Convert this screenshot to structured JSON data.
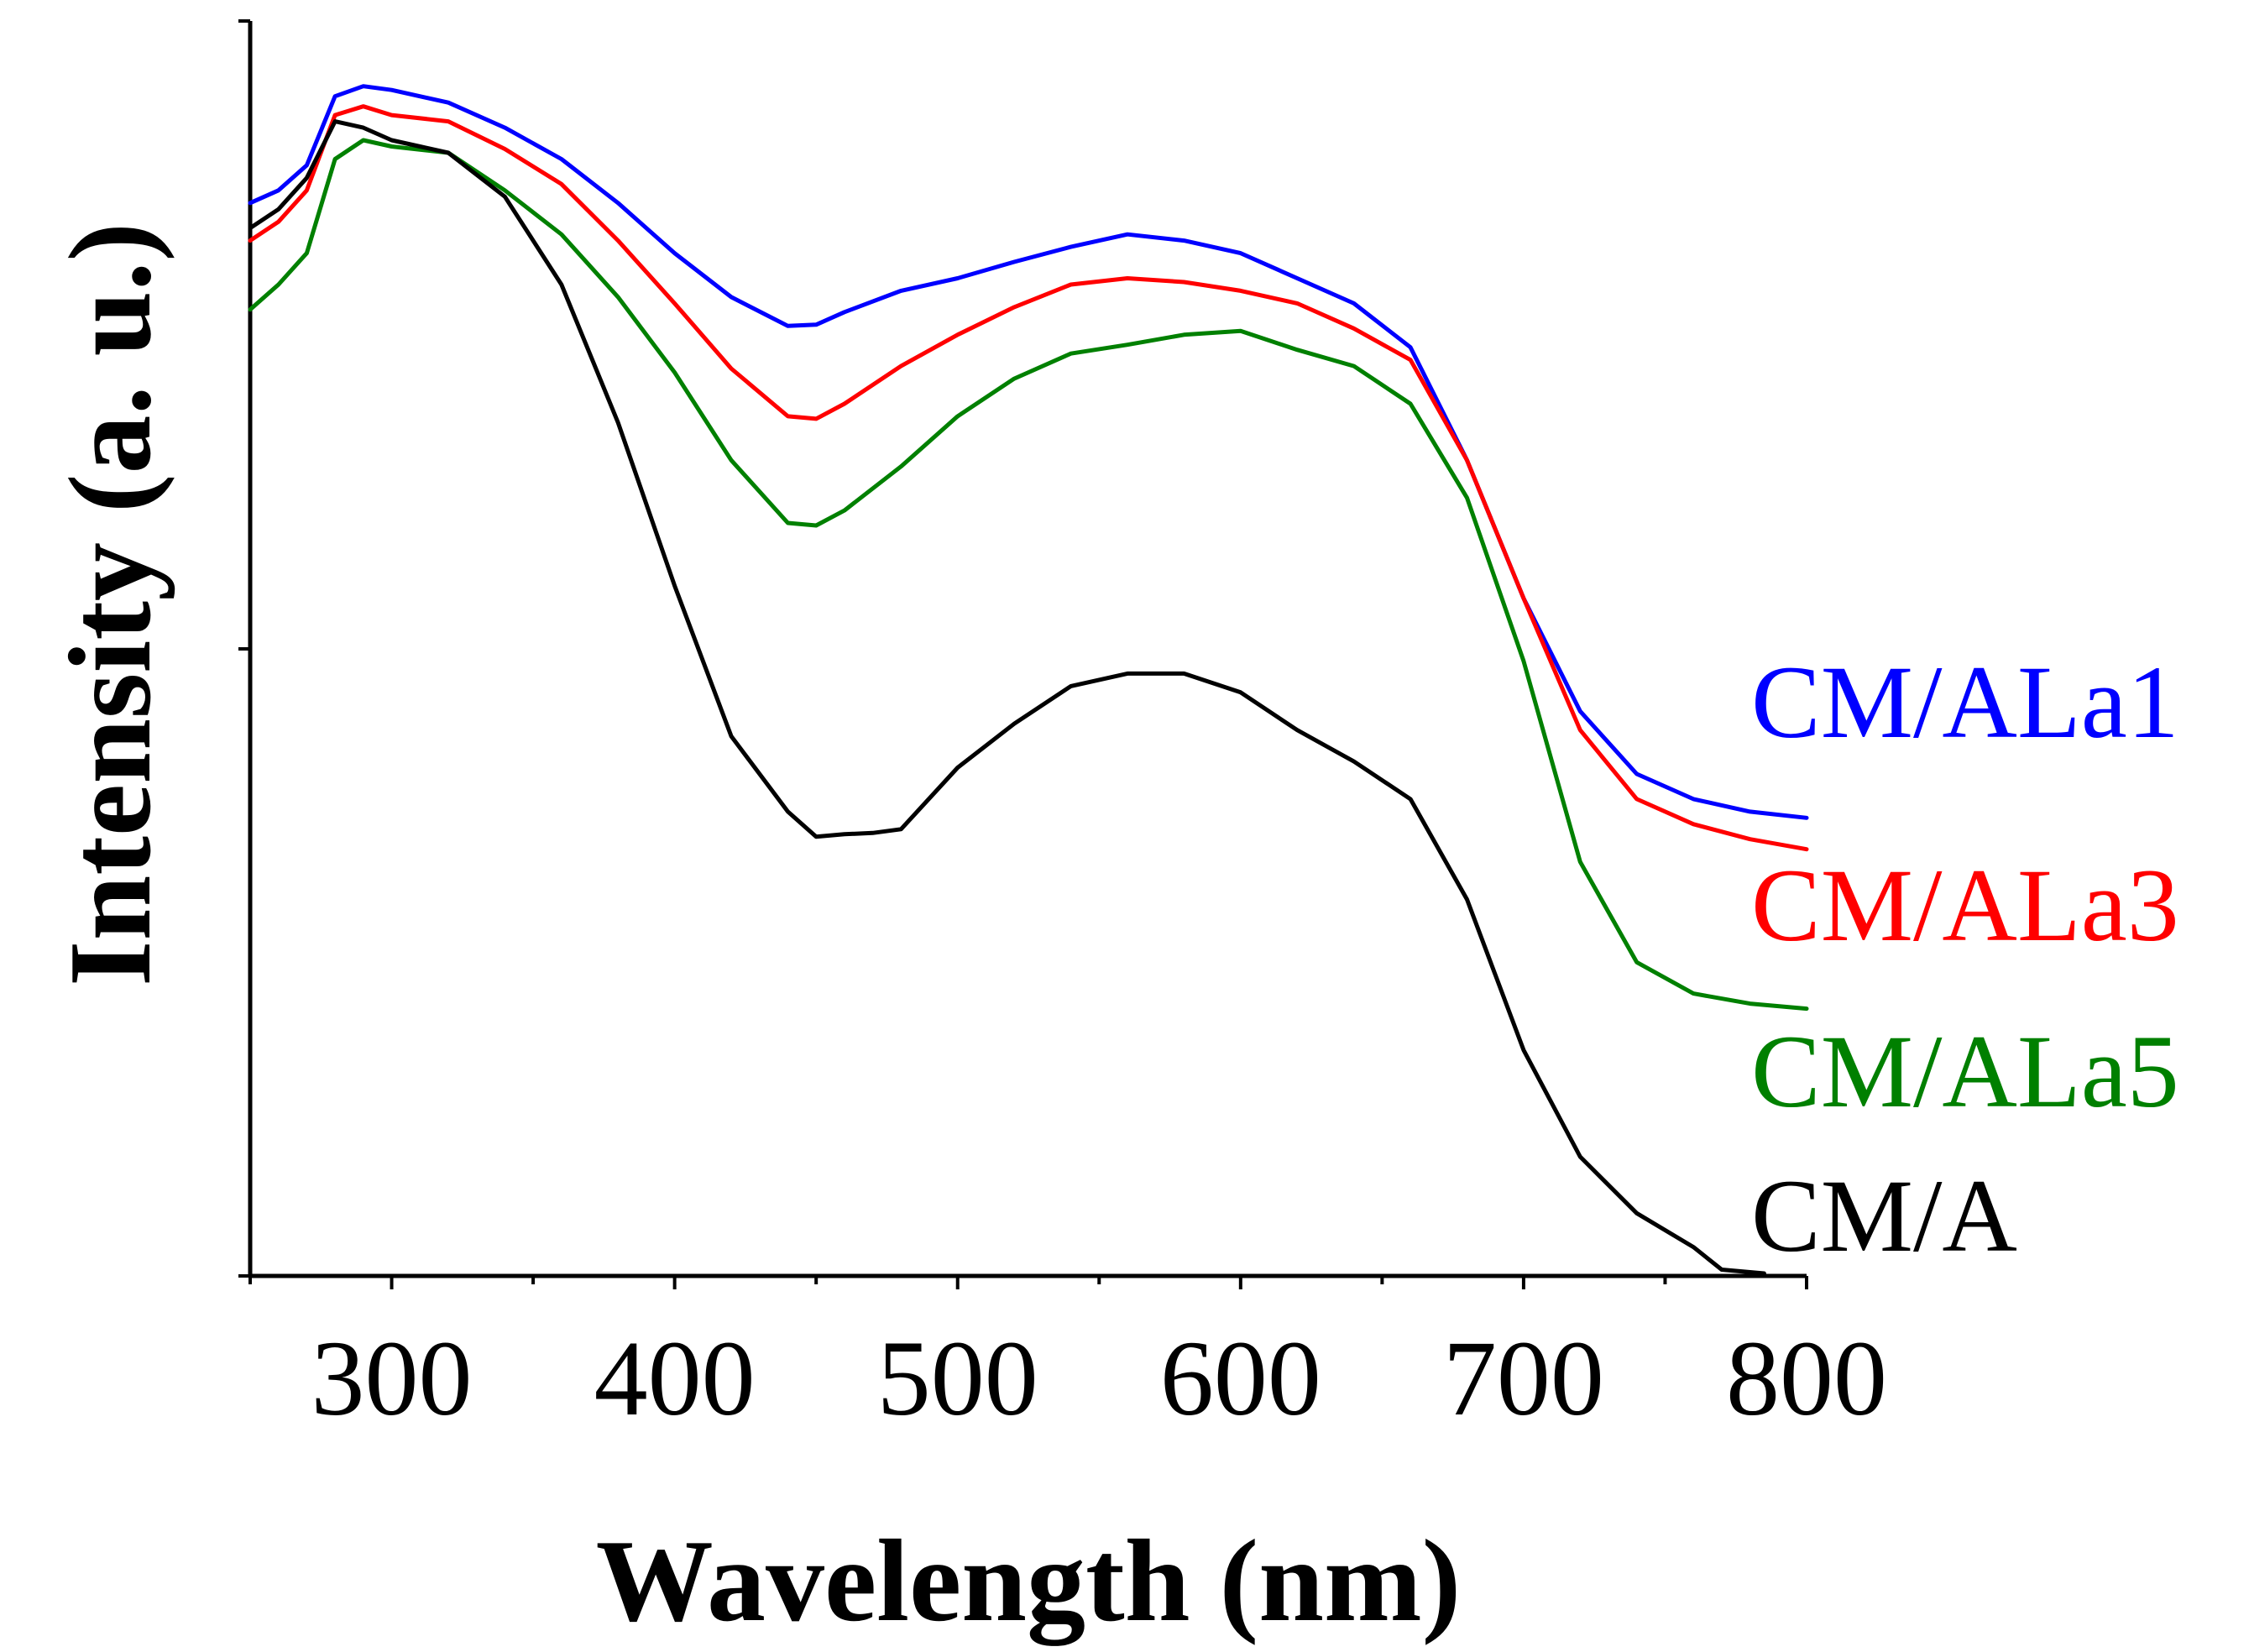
{
  "chart_data": {
    "type": "line",
    "title": "",
    "xlabel": "Wavelength (nm)",
    "ylabel": "Intensity (a. u.)",
    "xlim": [
      250,
      800
    ],
    "ylim": [
      0,
      100
    ],
    "xticks": [
      300,
      400,
      500,
      600,
      700,
      800
    ],
    "yticks_labeled": false,
    "grid": false,
    "legend": "right side, inline labels",
    "series": [
      {
        "name": "CM/ALa1",
        "color": "#0000ff",
        "x": [
          250,
          260,
          270,
          280,
          290,
          300,
          320,
          340,
          360,
          380,
          400,
          420,
          440,
          450,
          460,
          480,
          500,
          520,
          540,
          560,
          580,
          600,
          620,
          640,
          660,
          680,
          700,
          720,
          740,
          760,
          780,
          800
        ],
        "y": [
          85.5,
          86.5,
          88.5,
          94,
          94.8,
          94.5,
          93.5,
          91.5,
          89,
          85.5,
          81.5,
          78,
          75.7,
          75.8,
          76.8,
          78.5,
          79.5,
          80.8,
          82,
          83,
          82.5,
          81.5,
          79.5,
          77.5,
          74,
          65,
          54,
          45,
          40,
          38,
          37,
          36.5
        ]
      },
      {
        "name": "CM/ALa3",
        "color": "#ff0000",
        "x": [
          250,
          260,
          270,
          280,
          290,
          300,
          320,
          340,
          360,
          380,
          400,
          420,
          440,
          450,
          460,
          480,
          500,
          520,
          540,
          560,
          580,
          600,
          620,
          640,
          660,
          680,
          700,
          720,
          740,
          760,
          780,
          800
        ],
        "y": [
          82.5,
          84,
          86.5,
          92.5,
          93.2,
          92.5,
          92,
          89.8,
          87,
          82.5,
          77.5,
          72.3,
          68.5,
          68.3,
          69.5,
          72.5,
          75,
          77.2,
          79,
          79.5,
          79.2,
          78.5,
          77.5,
          75.5,
          73,
          65,
          54,
          43.5,
          38,
          36,
          34.8,
          34
        ]
      },
      {
        "name": "CM/ALa5",
        "color": "#008000",
        "x": [
          250,
          260,
          270,
          280,
          290,
          300,
          320,
          340,
          360,
          380,
          400,
          420,
          440,
          450,
          460,
          480,
          500,
          520,
          540,
          560,
          580,
          600,
          620,
          640,
          660,
          680,
          700,
          720,
          740,
          760,
          780,
          800
        ],
        "y": [
          77,
          79,
          81.5,
          89,
          90.5,
          90,
          89.5,
          86.5,
          83,
          78,
          72,
          65,
          60,
          59.8,
          61,
          64.5,
          68.5,
          71.5,
          73.5,
          74.2,
          75,
          75.3,
          73.8,
          72.5,
          69.5,
          62,
          49,
          33,
          25,
          22.5,
          21.7,
          21.3
        ]
      },
      {
        "name": "CM/A",
        "color": "#000000",
        "x": [
          250,
          260,
          270,
          280,
          290,
          300,
          310,
          320,
          340,
          360,
          380,
          400,
          420,
          440,
          450,
          460,
          470,
          480,
          500,
          520,
          540,
          560,
          580,
          600,
          620,
          640,
          660,
          680,
          700,
          720,
          740,
          760,
          770,
          780,
          785
        ],
        "y": [
          83.5,
          85,
          87.5,
          92,
          91.5,
          90.5,
          90,
          89.5,
          86,
          79,
          68,
          55,
          43,
          37,
          35,
          35.2,
          35.3,
          35.6,
          40.5,
          44,
          47,
          48,
          48,
          46.5,
          43.5,
          41,
          38,
          30,
          18,
          9.5,
          5,
          2.3,
          0.5,
          0.3,
          0.2
        ]
      }
    ]
  }
}
